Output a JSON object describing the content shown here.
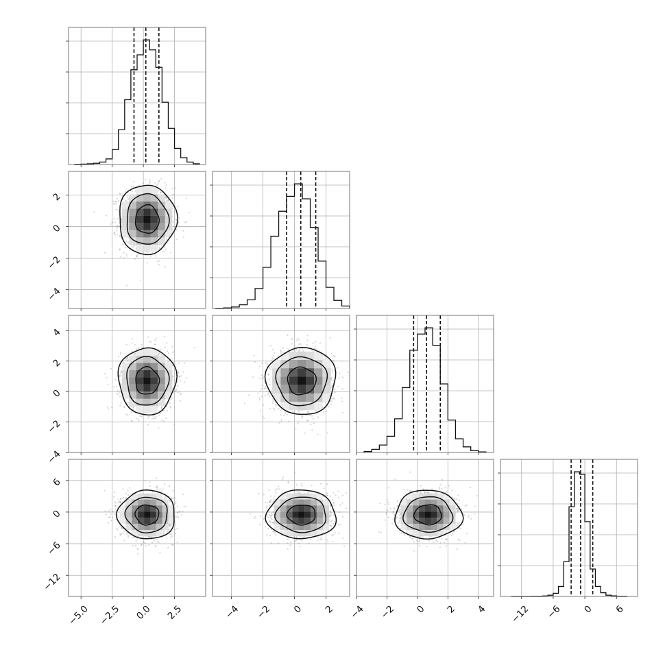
{
  "chart_data": {
    "type": "corner",
    "n_params": 4,
    "grid": true,
    "params": [
      {
        "range": [
          -6,
          5
        ],
        "ticks": [
          -5.0,
          -2.5,
          0.0,
          2.5
        ],
        "tick_labels": [
          "−5.0",
          "−2.5",
          "0.0",
          "2.5"
        ],
        "mean": 0.3,
        "sd": 1.05,
        "quantiles": [
          -0.75,
          0.2,
          1.25
        ]
      },
      {
        "range": [
          -5.2,
          3.5
        ],
        "ticks": [
          -4,
          -2,
          0,
          2
        ],
        "tick_labels": [
          "−4",
          "−2",
          "0",
          "2"
        ],
        "mean": 0.45,
        "sd": 1.0,
        "quantiles": [
          -0.5,
          0.4,
          1.35
        ]
      },
      {
        "range": [
          -4,
          5
        ],
        "ticks": [
          -4,
          -2,
          0,
          2,
          4
        ],
        "tick_labels": [
          "−4",
          "−2",
          "0",
          "2",
          "4"
        ],
        "mean": 0.7,
        "sd": 1.0,
        "quantiles": [
          -0.25,
          0.6,
          1.5
        ]
      },
      {
        "range": [
          -16,
          10
        ],
        "ticks": [
          -12,
          -6,
          0,
          6
        ],
        "tick_labels": [
          "−12",
          "−6",
          "0",
          "6"
        ],
        "mean": -0.5,
        "sd": 2.1,
        "quantiles": [
          -2.6,
          -0.8,
          1.5
        ]
      }
    ],
    "histograms": [
      {
        "bin_edges": [
          -5.5,
          -5.0,
          -4.5,
          -4.0,
          -3.5,
          -3.0,
          -2.5,
          -2.0,
          -1.5,
          -1.0,
          -0.5,
          0.0,
          0.5,
          1.0,
          1.5,
          2.0,
          2.5,
          3.0,
          3.5,
          4.0,
          4.5
        ],
        "counts": [
          2,
          3,
          6,
          10,
          20,
          45,
          120,
          280,
          520,
          760,
          880,
          1000,
          920,
          780,
          500,
          290,
          130,
          55,
          20,
          6
        ]
      },
      {
        "bin_edges": [
          -5.0,
          -4.5,
          -4.0,
          -3.5,
          -3.0,
          -2.5,
          -2.0,
          -1.5,
          -1.0,
          -0.5,
          0.0,
          0.5,
          1.0,
          1.5,
          2.0,
          2.5,
          3.0,
          3.5
        ],
        "counts": [
          2,
          5,
          12,
          30,
          70,
          160,
          330,
          580,
          780,
          900,
          1000,
          880,
          650,
          380,
          170,
          65,
          20
        ]
      },
      {
        "bin_edges": [
          -3.5,
          -3.0,
          -2.5,
          -2.0,
          -1.5,
          -1.0,
          -0.5,
          0.0,
          0.5,
          1.0,
          1.5,
          2.0,
          2.5,
          3.0,
          3.5,
          4.0,
          4.5
        ],
        "counts": [
          8,
          25,
          60,
          130,
          270,
          520,
          820,
          950,
          1000,
          860,
          550,
          260,
          110,
          45,
          15,
          5
        ]
      },
      {
        "bin_edges": [
          -14,
          -13,
          -12,
          -11,
          -10,
          -9,
          -8,
          -7,
          -6,
          -5,
          -4,
          -3,
          -2,
          -1,
          0,
          1,
          2,
          3,
          4,
          5,
          6,
          7,
          8
        ],
        "counts": [
          0,
          0,
          0,
          0,
          1,
          2,
          4,
          10,
          25,
          80,
          280,
          720,
          1000,
          980,
          600,
          220,
          80,
          30,
          10,
          5,
          2,
          1
        ]
      }
    ],
    "pairs": [
      {
        "x_param": 0,
        "y_param": 1,
        "contour_radii_sd": [
          0.9,
          1.6,
          2.2
        ]
      },
      {
        "x_param": 0,
        "y_param": 2,
        "contour_radii_sd": [
          0.9,
          1.6,
          2.2
        ]
      },
      {
        "x_param": 1,
        "y_param": 2,
        "contour_radii_sd": [
          0.9,
          1.6,
          2.2
        ]
      },
      {
        "x_param": 0,
        "y_param": 3,
        "contour_radii_sd": [
          0.9,
          1.6,
          2.2
        ]
      },
      {
        "x_param": 1,
        "y_param": 3,
        "contour_radii_sd": [
          0.9,
          1.6,
          2.2
        ]
      },
      {
        "x_param": 2,
        "y_param": 3,
        "contour_radii_sd": [
          0.9,
          1.6,
          2.2
        ]
      }
    ],
    "colors": {
      "line": "#111111",
      "scatter": "#7a7a7a",
      "grid": "#b0b0b0",
      "frame": "#555555"
    }
  }
}
